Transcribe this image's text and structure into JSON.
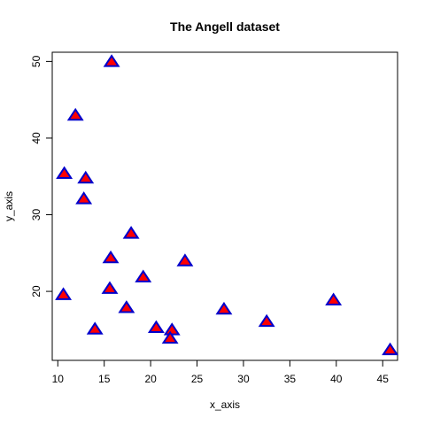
{
  "chart_data": {
    "type": "scatter",
    "title": "The Angell dataset",
    "xlabel": "x_axis",
    "ylabel": "y_axis",
    "xlim": [
      9.4,
      46.6
    ],
    "ylim": [
      11.0,
      51.2
    ],
    "xticks": [
      10,
      15,
      20,
      25,
      30,
      35,
      40,
      45
    ],
    "yticks": [
      20,
      30,
      40,
      50
    ],
    "grid": false,
    "marker": {
      "shape": "triangle",
      "fill_color": "#ff0000",
      "edge_color": "#0000cc"
    },
    "points": [
      {
        "x": 15.8,
        "y": 49.9
      },
      {
        "x": 11.9,
        "y": 42.9
      },
      {
        "x": 10.7,
        "y": 35.3
      },
      {
        "x": 13.0,
        "y": 34.7
      },
      {
        "x": 12.8,
        "y": 32.0
      },
      {
        "x": 17.9,
        "y": 27.5
      },
      {
        "x": 15.7,
        "y": 24.3
      },
      {
        "x": 23.7,
        "y": 23.9
      },
      {
        "x": 19.2,
        "y": 21.8
      },
      {
        "x": 15.6,
        "y": 20.3
      },
      {
        "x": 10.6,
        "y": 19.5
      },
      {
        "x": 39.7,
        "y": 18.8
      },
      {
        "x": 17.4,
        "y": 17.8
      },
      {
        "x": 27.9,
        "y": 17.6
      },
      {
        "x": 32.5,
        "y": 16.0
      },
      {
        "x": 20.6,
        "y": 15.2
      },
      {
        "x": 14.0,
        "y": 15.0
      },
      {
        "x": 22.3,
        "y": 14.9
      },
      {
        "x": 22.1,
        "y": 13.8
      },
      {
        "x": 45.8,
        "y": 12.3
      }
    ]
  }
}
